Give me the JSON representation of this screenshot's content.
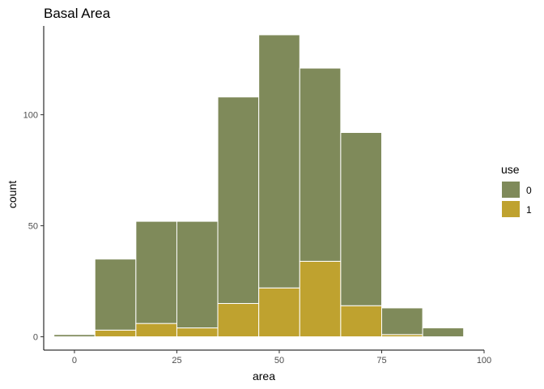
{
  "chart_data": {
    "type": "bar",
    "title": "Basal Area",
    "xlabel": "area",
    "ylabel": "count",
    "xlim": [
      -7.5,
      100
    ],
    "ylim": [
      -6,
      140
    ],
    "x_ticks": [
      0,
      25,
      50,
      75,
      100
    ],
    "y_ticks": [
      0,
      50,
      100
    ],
    "bin_width": 10,
    "bin_centers": [
      0,
      10,
      20,
      30,
      40,
      50,
      60,
      70,
      80,
      90
    ],
    "stacked": true,
    "grid": false,
    "legend": {
      "title": "use",
      "position": "right"
    },
    "series": [
      {
        "name": "0",
        "color": "#7f8a5a",
        "values": [
          1,
          32,
          46,
          48,
          93,
          114,
          87,
          78,
          12,
          4
        ]
      },
      {
        "name": "1",
        "color": "#bfa22f",
        "values": [
          0,
          3,
          6,
          4,
          15,
          22,
          34,
          14,
          1,
          0
        ]
      }
    ]
  }
}
